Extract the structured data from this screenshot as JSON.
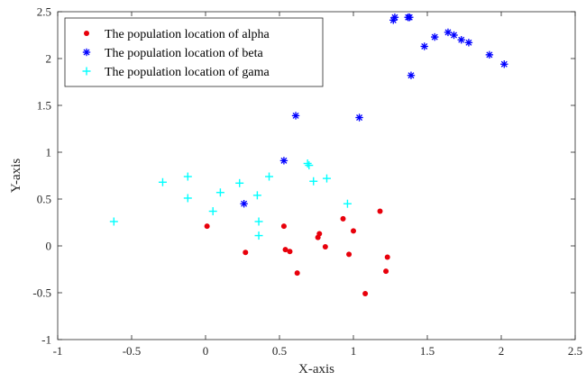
{
  "chart_data": {
    "type": "scatter",
    "title": "",
    "xlabel": "X-axis",
    "ylabel": "Y-axis",
    "xlim": [
      -1,
      2.5
    ],
    "ylim": [
      -1,
      2.5
    ],
    "x_ticks": [
      -1,
      -0.5,
      0,
      0.5,
      1,
      1.5,
      2,
      2.5
    ],
    "y_ticks": [
      -1,
      -0.5,
      0,
      0.5,
      1,
      1.5,
      2,
      2.5
    ],
    "x_tick_labels": [
      "-1",
      "-0.5",
      "0",
      "0.5",
      "1",
      "1.5",
      "2",
      "2.5"
    ],
    "y_tick_labels": [
      "-1",
      "-0.5",
      "0",
      "0.5",
      "1",
      "1.5",
      "2",
      "2.5"
    ],
    "grid": false,
    "legend_position": "top-left",
    "series": [
      {
        "name": "The population location of alpha",
        "marker": "dot",
        "color": "#e8000b",
        "points": [
          [
            0.01,
            0.21
          ],
          [
            0.27,
            -0.07
          ],
          [
            0.53,
            0.21
          ],
          [
            0.54,
            -0.04
          ],
          [
            0.57,
            -0.06
          ],
          [
            0.62,
            -0.29
          ],
          [
            0.76,
            0.09
          ],
          [
            0.77,
            0.13
          ],
          [
            0.81,
            -0.01
          ],
          [
            0.93,
            0.29
          ],
          [
            0.97,
            -0.09
          ],
          [
            1.0,
            0.16
          ],
          [
            1.08,
            -0.51
          ],
          [
            1.18,
            0.37
          ],
          [
            1.22,
            -0.27
          ],
          [
            1.23,
            -0.12
          ]
        ]
      },
      {
        "name": "The population location of beta",
        "marker": "asterisk",
        "color": "#0000ff",
        "points": [
          [
            0.26,
            0.45
          ],
          [
            0.53,
            0.91
          ],
          [
            0.61,
            1.39
          ],
          [
            1.04,
            1.37
          ],
          [
            1.27,
            2.41
          ],
          [
            1.28,
            2.44
          ],
          [
            1.37,
            2.44
          ],
          [
            1.38,
            2.44
          ],
          [
            1.39,
            1.82
          ],
          [
            1.48,
            2.13
          ],
          [
            1.55,
            2.23
          ],
          [
            1.64,
            2.28
          ],
          [
            1.68,
            2.25
          ],
          [
            1.73,
            2.2
          ],
          [
            1.78,
            2.17
          ],
          [
            1.92,
            2.04
          ],
          [
            2.02,
            1.94
          ]
        ]
      },
      {
        "name": "The population location of gama",
        "marker": "plus",
        "color": "#00ffff",
        "points": [
          [
            -0.62,
            0.26
          ],
          [
            -0.29,
            0.68
          ],
          [
            -0.12,
            0.74
          ],
          [
            -0.12,
            0.51
          ],
          [
            0.05,
            0.37
          ],
          [
            0.1,
            0.57
          ],
          [
            0.23,
            0.67
          ],
          [
            0.35,
            0.54
          ],
          [
            0.36,
            0.26
          ],
          [
            0.36,
            0.11
          ],
          [
            0.43,
            0.74
          ],
          [
            0.69,
            0.88
          ],
          [
            0.7,
            0.86
          ],
          [
            0.73,
            0.69
          ],
          [
            0.82,
            0.72
          ],
          [
            0.96,
            0.45
          ]
        ]
      }
    ]
  }
}
